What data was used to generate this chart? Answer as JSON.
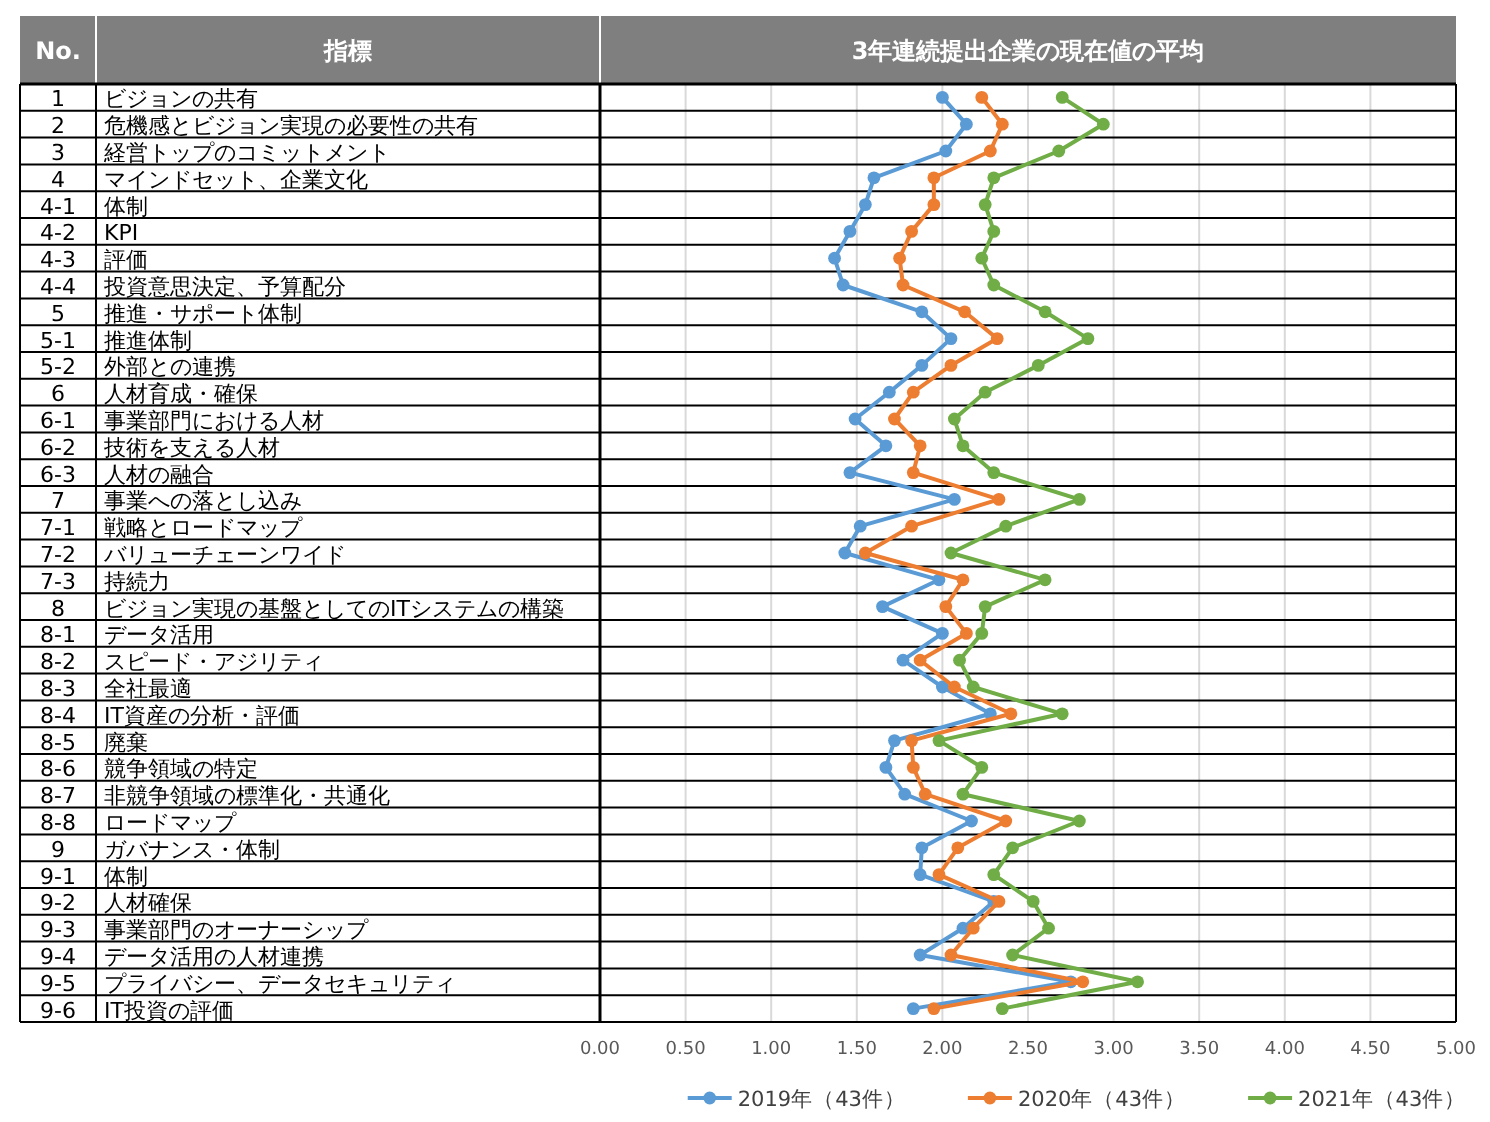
{
  "chart_data": {
    "type": "line",
    "orientation": "horizontal",
    "title": "3年連続提出企業の現在値の平均",
    "ylabel": "指標",
    "annotations": [
      "No."
    ],
    "categories": [
      "ビジョンの共有",
      "危機感とビジョン実現の必要性の共有",
      "経営トップのコミットメント",
      "マインドセット、企業文化",
      "体制",
      "KPI",
      "評価",
      "投資意思決定、予算配分",
      "推進・サポート体制",
      "推進体制",
      "外部との連携",
      "人材育成・確保",
      "事業部門における人材",
      "技術を支える人材",
      "人材の融合",
      "事業への落とし込み",
      "戦略とロードマップ",
      "バリューチェーンワイド",
      "持続力",
      "ビジョン実現の基盤としてのITシステムの構築",
      "データ活用",
      "スピード・アジリティ",
      "全社最適",
      "IT資産の分析・評価",
      "廃棄",
      "競争領域の特定",
      "非競争領域の標準化・共通化",
      "ロードマップ",
      "ガバナンス・体制",
      "体制",
      "人材確保",
      "事業部門のオーナーシップ",
      "データ活用の人材連携",
      "プライバシー、データセキュリティ",
      "IT投資の評価"
    ],
    "y2_categories": [
      "1",
      "2",
      "3",
      "4",
      "4-1",
      "4-2",
      "4-3",
      "4-4",
      "5",
      "5-1",
      "5-2",
      "6",
      "6-1",
      "6-2",
      "6-3",
      "7",
      "7-1",
      "7-2",
      "7-3",
      "8",
      "8-1",
      "8-2",
      "8-3",
      "8-4",
      "8-5",
      "8-6",
      "8-7",
      "8-8",
      "9",
      "9-1",
      "9-2",
      "9-3",
      "9-4",
      "9-5",
      "9-6"
    ],
    "xlim": [
      0,
      5
    ],
    "xticks": [
      {
        "value": 0,
        "label": "0.00"
      },
      {
        "value": 0.5,
        "label": "0.50"
      },
      {
        "value": 1,
        "label": "1.00"
      },
      {
        "value": 1.5,
        "label": "1.50"
      },
      {
        "value": 2,
        "label": "2.00"
      },
      {
        "value": 2.5,
        "label": "2.50"
      },
      {
        "value": 3,
        "label": "3.00"
      },
      {
        "value": 3.5,
        "label": "3.50"
      },
      {
        "value": 4,
        "label": "4.00"
      },
      {
        "value": 4.5,
        "label": "4.50"
      },
      {
        "value": 5,
        "label": "5.00"
      }
    ],
    "grid": "x",
    "legend": "bottom",
    "marker": "circle",
    "series": [
      {
        "name": "2019年（43件）",
        "color": "#5b9bd5",
        "values": [
          2.0,
          2.14,
          2.02,
          1.6,
          1.55,
          1.46,
          1.37,
          1.42,
          1.88,
          2.05,
          1.88,
          1.69,
          1.49,
          1.67,
          1.46,
          2.07,
          1.52,
          1.43,
          1.98,
          1.65,
          2.0,
          1.77,
          2.0,
          2.28,
          1.72,
          1.67,
          1.78,
          2.17,
          1.88,
          1.87,
          2.3,
          2.12,
          1.87,
          2.75,
          1.83
        ]
      },
      {
        "name": "2020年（43件）",
        "color": "#ed7d31",
        "values": [
          2.23,
          2.35,
          2.28,
          1.95,
          1.95,
          1.82,
          1.75,
          1.77,
          2.13,
          2.32,
          2.05,
          1.83,
          1.72,
          1.87,
          1.83,
          2.33,
          1.82,
          1.55,
          2.12,
          2.02,
          2.14,
          1.87,
          2.07,
          2.4,
          1.82,
          1.83,
          1.9,
          2.37,
          2.09,
          1.98,
          2.33,
          2.18,
          2.05,
          2.82,
          1.95
        ]
      },
      {
        "name": "2021年（43件）",
        "color": "#70ad47",
        "values": [
          2.7,
          2.94,
          2.68,
          2.3,
          2.25,
          2.3,
          2.23,
          2.3,
          2.6,
          2.85,
          2.56,
          2.25,
          2.07,
          2.12,
          2.3,
          2.8,
          2.37,
          2.05,
          2.6,
          2.25,
          2.23,
          2.1,
          2.18,
          2.7,
          1.98,
          2.23,
          2.12,
          2.8,
          2.41,
          2.3,
          2.53,
          2.62,
          2.41,
          3.14,
          2.35
        ]
      }
    ]
  }
}
